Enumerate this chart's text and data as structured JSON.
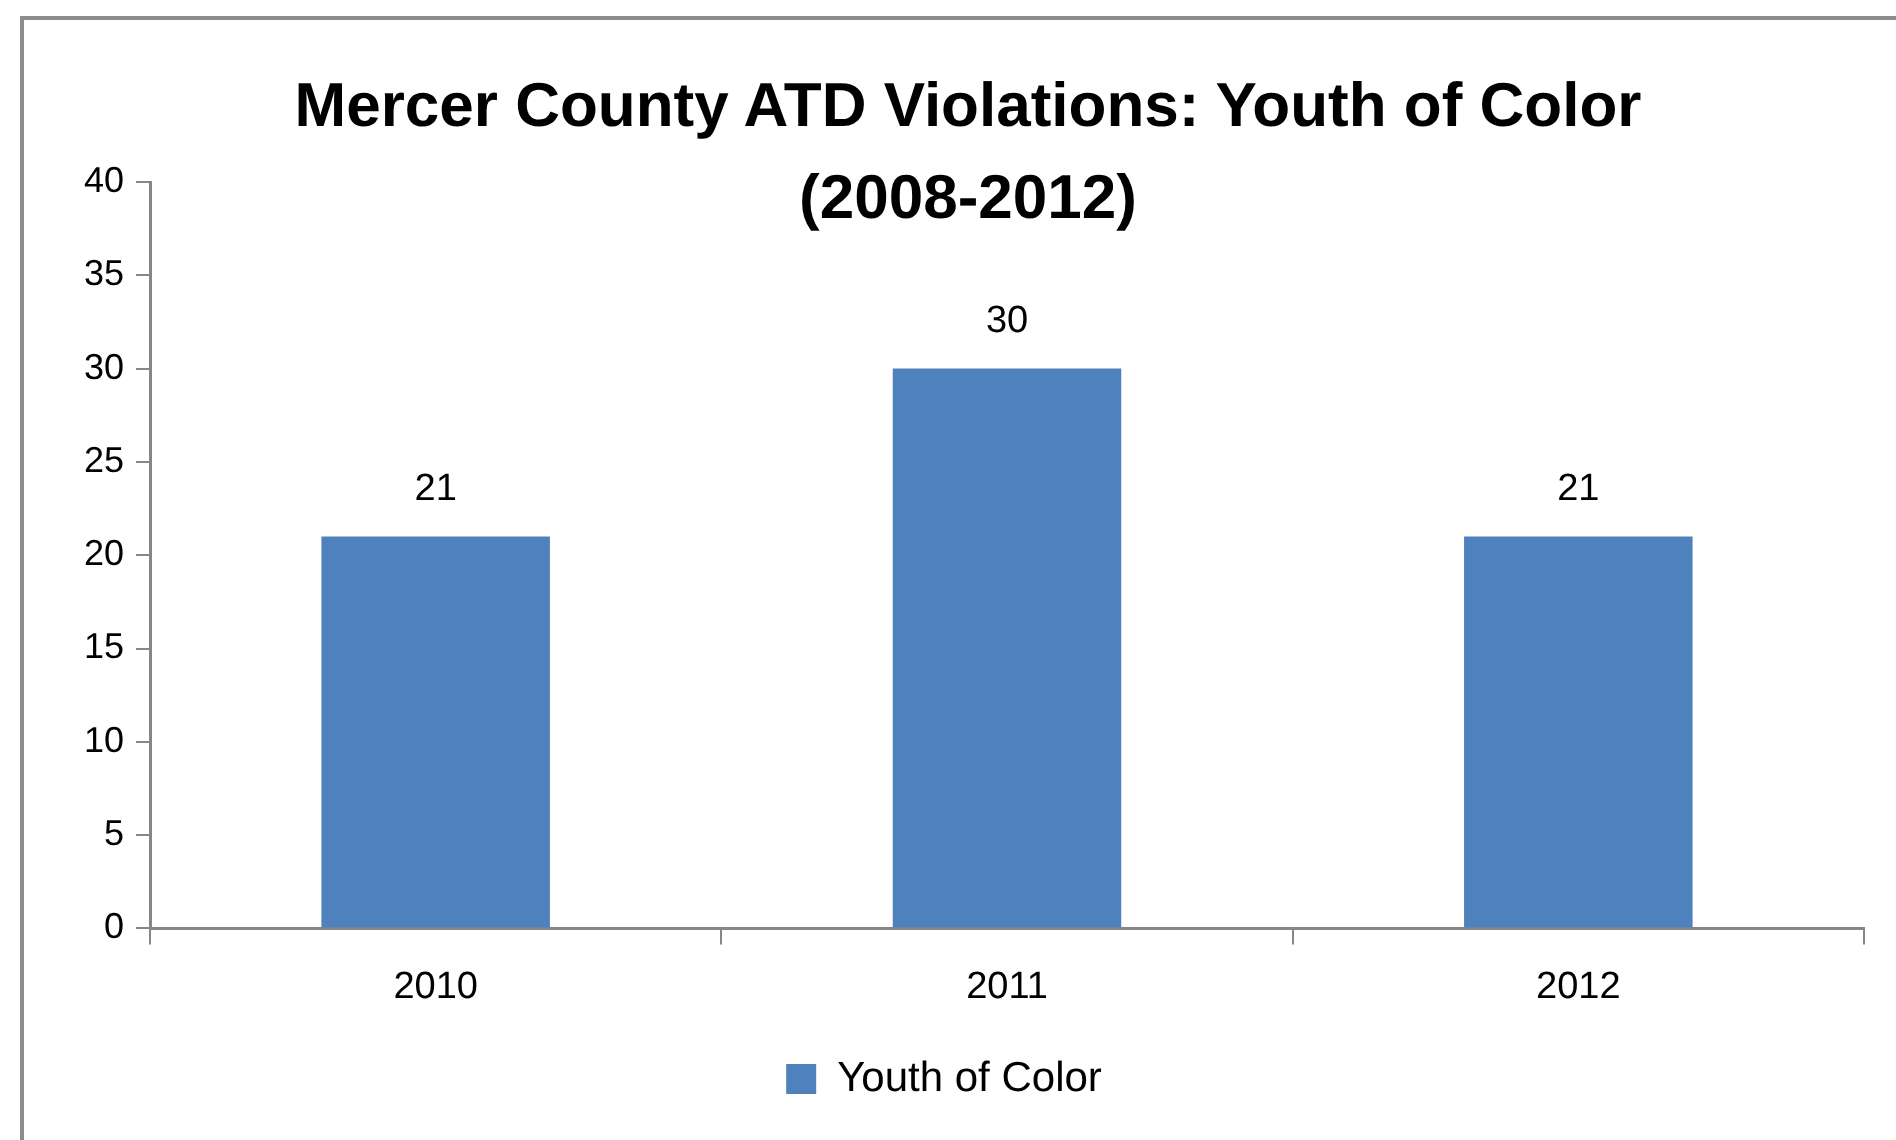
{
  "chart_data": {
    "type": "bar",
    "title": "Mercer County ATD Violations: Youth of Color (2008-2012)",
    "categories": [
      "2010",
      "2011",
      "2012"
    ],
    "series": [
      {
        "name": "Youth of Color",
        "color": "#4f81bd",
        "values": [
          21,
          30,
          21
        ]
      }
    ],
    "ylim": [
      0,
      40
    ],
    "yticks": [
      0,
      5,
      10,
      15,
      20,
      25,
      30,
      35,
      40
    ],
    "grid": false,
    "legend": "bottom",
    "data_labels": true
  }
}
